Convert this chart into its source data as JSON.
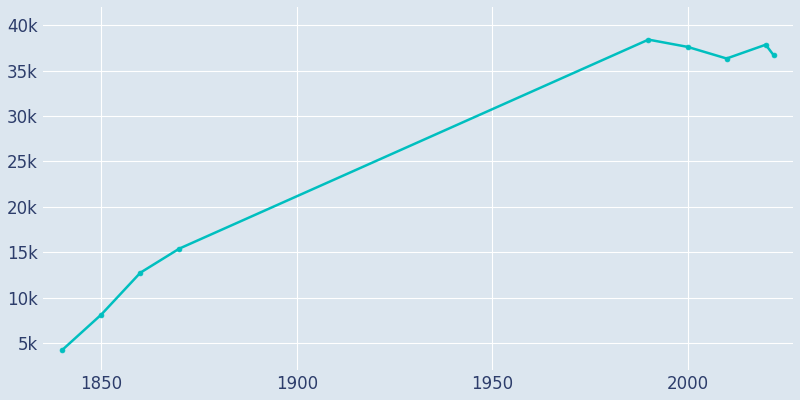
{
  "years": [
    1840,
    1850,
    1860,
    1870,
    1990,
    2000,
    2010,
    2020,
    2022
  ],
  "population": [
    4226,
    8126,
    12738,
    15397,
    38402,
    37603,
    36322,
    37841,
    36701
  ],
  "line_color": "#00BFBF",
  "marker_color": "#00BFBF",
  "bg_color": "#dce6ef",
  "plot_bg_color": "#dce6ef",
  "grid_color": "#ffffff",
  "tick_color": "#2d3d6b",
  "ylim": [
    2000,
    42000
  ],
  "xlim": [
    1835,
    2027
  ],
  "ytick_labels": [
    "5k",
    "10k",
    "15k",
    "20k",
    "25k",
    "30k",
    "35k",
    "40k"
  ],
  "ytick_values": [
    5000,
    10000,
    15000,
    20000,
    25000,
    30000,
    35000,
    40000
  ],
  "xtick_values": [
    1850,
    1900,
    1950,
    2000
  ],
  "linewidth": 1.8,
  "markersize": 3.5
}
